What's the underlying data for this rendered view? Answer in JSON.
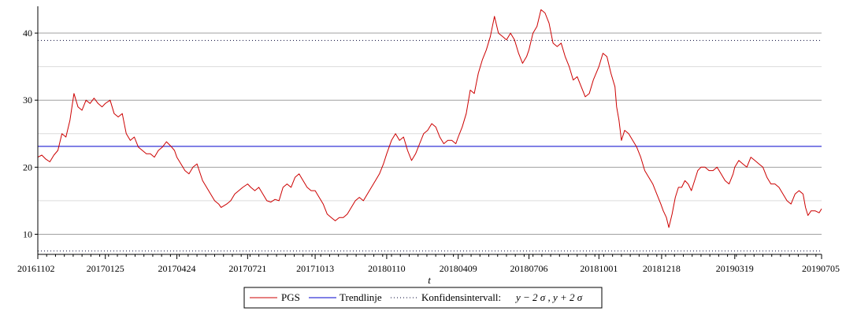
{
  "chart_data": {
    "type": "line",
    "xlabel": "t",
    "ylabel": "",
    "ylim": [
      7,
      44
    ],
    "y_ticks": [
      10,
      20,
      30,
      40
    ],
    "grid": true,
    "legend_placement": "bottom-center",
    "x_start_label": "20161102",
    "x_end_label": "20190705",
    "x_ticks": [
      "20161102",
      "20170125",
      "20170424",
      "20170721",
      "20171013",
      "20180110",
      "20180409",
      "20180706",
      "20181001",
      "20181218",
      "20190319",
      "20190705"
    ],
    "x_tick_index": [
      0,
      84,
      173,
      261,
      345,
      434,
      523,
      611,
      698,
      776,
      867,
      975
    ],
    "series": [
      {
        "name": "PGS",
        "style": "line",
        "color": "#cc0000",
        "points": [
          [
            0,
            21.5
          ],
          [
            5,
            21.8
          ],
          [
            10,
            21.2
          ],
          [
            15,
            20.8
          ],
          [
            20,
            21.8
          ],
          [
            25,
            22.5
          ],
          [
            30,
            25
          ],
          [
            35,
            24.5
          ],
          [
            40,
            27
          ],
          [
            45,
            31
          ],
          [
            50,
            29
          ],
          [
            55,
            28.5
          ],
          [
            60,
            30
          ],
          [
            65,
            29.5
          ],
          [
            70,
            30.3
          ],
          [
            75,
            29.5
          ],
          [
            80,
            29
          ],
          [
            84,
            29.5
          ],
          [
            90,
            30
          ],
          [
            95,
            28
          ],
          [
            100,
            27.5
          ],
          [
            105,
            28
          ],
          [
            110,
            25
          ],
          [
            115,
            24
          ],
          [
            120,
            24.5
          ],
          [
            125,
            23
          ],
          [
            130,
            22.5
          ],
          [
            135,
            22
          ],
          [
            140,
            22
          ],
          [
            145,
            21.5
          ],
          [
            150,
            22.5
          ],
          [
            155,
            23
          ],
          [
            160,
            23.8
          ],
          [
            165,
            23.2
          ],
          [
            170,
            22.5
          ],
          [
            173,
            21.5
          ],
          [
            178,
            20.5
          ],
          [
            183,
            19.5
          ],
          [
            188,
            19
          ],
          [
            193,
            20
          ],
          [
            198,
            20.5
          ],
          [
            205,
            18
          ],
          [
            210,
            17
          ],
          [
            215,
            16
          ],
          [
            220,
            15
          ],
          [
            225,
            14.5
          ],
          [
            228,
            14
          ],
          [
            235,
            14.5
          ],
          [
            240,
            15
          ],
          [
            245,
            16
          ],
          [
            250,
            16.5
          ],
          [
            255,
            17
          ],
          [
            261,
            17.5
          ],
          [
            265,
            17
          ],
          [
            270,
            16.5
          ],
          [
            275,
            17
          ],
          [
            280,
            16
          ],
          [
            285,
            15
          ],
          [
            290,
            14.8
          ],
          [
            295,
            15.2
          ],
          [
            300,
            15
          ],
          [
            305,
            17
          ],
          [
            310,
            17.5
          ],
          [
            315,
            17
          ],
          [
            320,
            18.5
          ],
          [
            325,
            19
          ],
          [
            330,
            18
          ],
          [
            335,
            17
          ],
          [
            340,
            16.5
          ],
          [
            345,
            16.5
          ],
          [
            350,
            15.5
          ],
          [
            355,
            14.5
          ],
          [
            360,
            13
          ],
          [
            365,
            12.5
          ],
          [
            370,
            12
          ],
          [
            375,
            12.5
          ],
          [
            380,
            12.5
          ],
          [
            385,
            13
          ],
          [
            390,
            14
          ],
          [
            395,
            15
          ],
          [
            400,
            15.5
          ],
          [
            405,
            15
          ],
          [
            410,
            16
          ],
          [
            415,
            17
          ],
          [
            420,
            18
          ],
          [
            425,
            19
          ],
          [
            430,
            20.5
          ],
          [
            434,
            22
          ],
          [
            440,
            24
          ],
          [
            445,
            25
          ],
          [
            450,
            24
          ],
          [
            455,
            24.5
          ],
          [
            460,
            22.5
          ],
          [
            465,
            21
          ],
          [
            470,
            22
          ],
          [
            475,
            23.5
          ],
          [
            480,
            25
          ],
          [
            485,
            25.5
          ],
          [
            490,
            26.5
          ],
          [
            495,
            26
          ],
          [
            500,
            24.5
          ],
          [
            505,
            23.5
          ],
          [
            510,
            24
          ],
          [
            515,
            24
          ],
          [
            520,
            23.5
          ],
          [
            523,
            24.5
          ],
          [
            528,
            26
          ],
          [
            533,
            28
          ],
          [
            538,
            31.5
          ],
          [
            543,
            31
          ],
          [
            548,
            34
          ],
          [
            553,
            36
          ],
          [
            558,
            37.5
          ],
          [
            563,
            39.5
          ],
          [
            568,
            42.5
          ],
          [
            573,
            40
          ],
          [
            578,
            39.5
          ],
          [
            583,
            39
          ],
          [
            588,
            40
          ],
          [
            593,
            39
          ],
          [
            598,
            37
          ],
          [
            603,
            35.5
          ],
          [
            608,
            36.5
          ],
          [
            611,
            37.5
          ],
          [
            616,
            40
          ],
          [
            621,
            41
          ],
          [
            626,
            43.5
          ],
          [
            631,
            43
          ],
          [
            636,
            41.5
          ],
          [
            641,
            38.5
          ],
          [
            646,
            38
          ],
          [
            651,
            38.5
          ],
          [
            656,
            36.5
          ],
          [
            661,
            35
          ],
          [
            666,
            33
          ],
          [
            671,
            33.5
          ],
          [
            676,
            32
          ],
          [
            681,
            30.5
          ],
          [
            686,
            31
          ],
          [
            691,
            33
          ],
          [
            698,
            35
          ],
          [
            703,
            37
          ],
          [
            708,
            36.5
          ],
          [
            713,
            34
          ],
          [
            718,
            32
          ],
          [
            720,
            29
          ],
          [
            723,
            27
          ],
          [
            726,
            24
          ],
          [
            730,
            25.5
          ],
          [
            735,
            25
          ],
          [
            740,
            24
          ],
          [
            745,
            23
          ],
          [
            750,
            21.5
          ],
          [
            755,
            19.5
          ],
          [
            760,
            18.5
          ],
          [
            765,
            17.5
          ],
          [
            770,
            16
          ],
          [
            775,
            14.5
          ],
          [
            778,
            13.5
          ],
          [
            782,
            12.5
          ],
          [
            785,
            11
          ],
          [
            789,
            13
          ],
          [
            793,
            15.5
          ],
          [
            797,
            17
          ],
          [
            801,
            17
          ],
          [
            805,
            18
          ],
          [
            809,
            17.5
          ],
          [
            813,
            16.5
          ],
          [
            817,
            18
          ],
          [
            821,
            19.5
          ],
          [
            825,
            20
          ],
          [
            830,
            20
          ],
          [
            835,
            19.5
          ],
          [
            840,
            19.5
          ],
          [
            845,
            20
          ],
          [
            850,
            19
          ],
          [
            855,
            18
          ],
          [
            860,
            17.5
          ],
          [
            865,
            19
          ],
          [
            867,
            20
          ],
          [
            872,
            21
          ],
          [
            877,
            20.5
          ],
          [
            882,
            20
          ],
          [
            887,
            21.5
          ],
          [
            892,
            21
          ],
          [
            897,
            20.5
          ],
          [
            902,
            20
          ],
          [
            907,
            18.5
          ],
          [
            912,
            17.5
          ],
          [
            917,
            17.5
          ],
          [
            922,
            17
          ],
          [
            927,
            16
          ],
          [
            932,
            15
          ],
          [
            937,
            14.5
          ],
          [
            942,
            16
          ],
          [
            947,
            16.5
          ],
          [
            952,
            16
          ],
          [
            955,
            14
          ],
          [
            958,
            12.8
          ],
          [
            962,
            13.5
          ],
          [
            967,
            13.5
          ],
          [
            972,
            13.2
          ],
          [
            975,
            13.8
          ]
        ]
      },
      {
        "name": "Trendlinje",
        "style": "line",
        "color": "#0000cc",
        "points": [
          [
            0,
            23.1
          ],
          [
            975,
            23.1
          ]
        ]
      },
      {
        "name": "Konfidensintervall:",
        "style": "dotted",
        "color": "#000033",
        "band": [
          7.5,
          38.9
        ]
      }
    ],
    "legend_math": "y − 2 σ , y + 2 σ"
  }
}
